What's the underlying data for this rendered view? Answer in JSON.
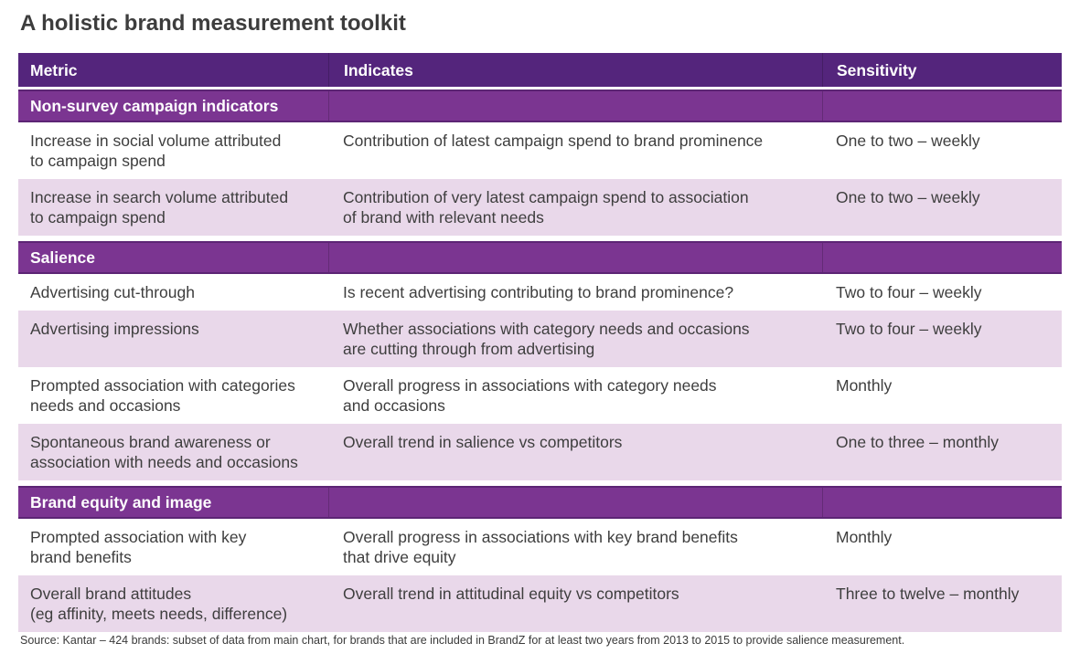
{
  "title": "A holistic brand measurement toolkit",
  "colors": {
    "header_purple": "#54257C",
    "band_purple": "#7B3591",
    "band_edge_purple": "#5C2574",
    "shaded_row": "#E9D8EA",
    "text": "#3E3E3E"
  },
  "table": {
    "columns": [
      "Metric",
      "Indicates",
      "Sensitivity"
    ],
    "sections": [
      {
        "name": "Non-survey campaign indicators",
        "rows": [
          {
            "metric": "Increase in social volume attributed\nto campaign spend",
            "indicates": "Contribution of latest campaign spend to brand prominence",
            "sensitivity": "One to two – weekly"
          },
          {
            "metric": "Increase in search volume attributed\nto campaign spend",
            "indicates": "Contribution of very latest campaign spend to association\nof brand with relevant needs",
            "sensitivity": "One to two – weekly"
          }
        ]
      },
      {
        "name": "Salience",
        "rows": [
          {
            "metric": "Advertising cut-through",
            "indicates": "Is recent advertising contributing to brand prominence?",
            "sensitivity": "Two to four – weekly"
          },
          {
            "metric": "Advertising impressions",
            "indicates": "Whether associations with category needs and occasions\nare cutting through from advertising",
            "sensitivity": "Two to four – weekly"
          },
          {
            "metric": "Prompted association with categories\nneeds and occasions",
            "indicates": "Overall progress in associations with category needs\nand occasions",
            "sensitivity": "Monthly"
          },
          {
            "metric": "Spontaneous brand awareness or\nassociation with needs and occasions",
            "indicates": "Overall trend in salience vs competitors",
            "sensitivity": "One to three – monthly"
          }
        ]
      },
      {
        "name": "Brand equity and image",
        "rows": [
          {
            "metric": "Prompted association with key\nbrand benefits",
            "indicates": "Overall progress in associations with key brand benefits\nthat drive equity",
            "sensitivity": "Monthly"
          },
          {
            "metric": "Overall brand attitudes\n(eg affinity, meets needs, difference)",
            "indicates": "Overall trend in attitudinal equity vs competitors",
            "sensitivity": "Three to twelve – monthly"
          }
        ]
      }
    ]
  },
  "source": "Source: Kantar – 424 brands: subset of data from main chart, for brands that are included in BrandZ for at least two years from 2013 to 2015 to provide salience measurement."
}
